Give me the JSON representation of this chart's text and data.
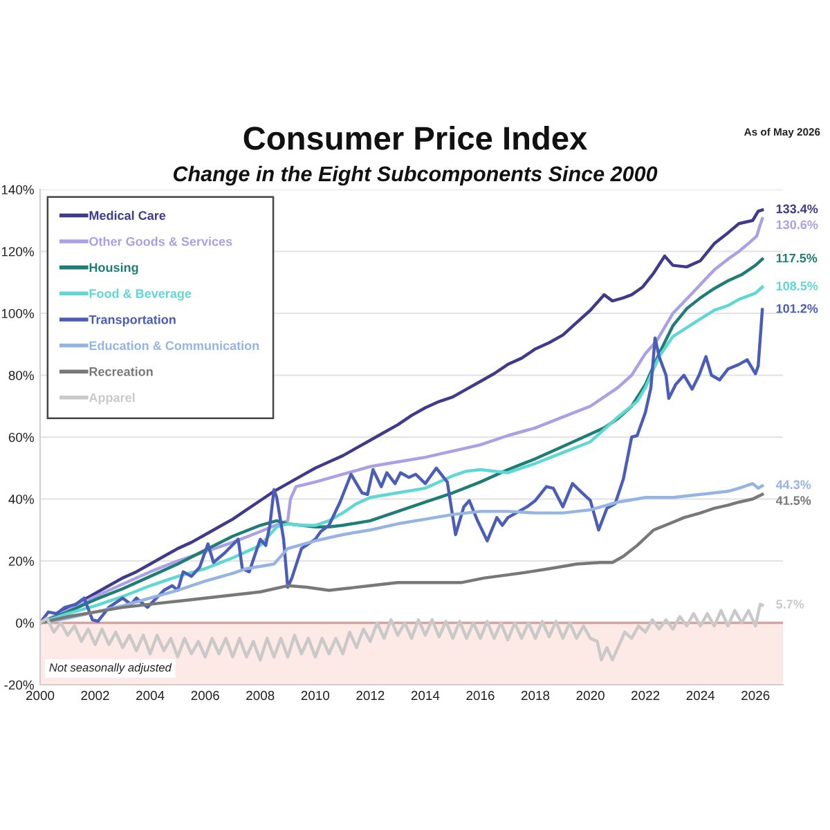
{
  "chart_data": {
    "type": "line",
    "title": "Consumer Price Index",
    "subtitle": "Change in the Eight Subcomponents Since 2000",
    "annotations": [
      "As of May 2026",
      "Not seasonally adjusted"
    ],
    "xlim": [
      2000,
      2027
    ],
    "xticks": [
      2000,
      2002,
      2004,
      2006,
      2008,
      2010,
      2012,
      2014,
      2016,
      2018,
      2020,
      2022,
      2024,
      2026
    ],
    "ylim": [
      -20,
      140
    ],
    "yticks": [
      {
        "value": -20,
        "label": "-20%"
      },
      {
        "value": 0,
        "label": "0%"
      },
      {
        "value": 20,
        "label": "20%"
      },
      {
        "value": 40,
        "label": "40%"
      },
      {
        "value": 60,
        "label": "60%"
      },
      {
        "value": 80,
        "label": "80%"
      },
      {
        "value": 100,
        "label": "100%"
      },
      {
        "value": 120,
        "label": "120%"
      },
      {
        "value": 140,
        "label": "140%"
      }
    ],
    "grid": "y",
    "legend": "top left",
    "line_style": "solid",
    "bands": [
      {
        "axis": "y",
        "from": -20,
        "to": 0,
        "color": "#fde9e6"
      }
    ],
    "ref_lines": [
      {
        "axis": "y",
        "value": 0,
        "color": "#d4a59f"
      }
    ],
    "series": [
      {
        "name": "Medical Care",
        "color": "#3f3a8c",
        "x": [
          2000,
          2000.5,
          2001,
          2001.5,
          2002,
          2002.5,
          2003,
          2003.5,
          2004,
          2004.5,
          2005,
          2005.5,
          2006,
          2006.5,
          2007,
          2007.5,
          2008,
          2008.5,
          2009,
          2009.5,
          2010,
          2010.5,
          2011,
          2011.5,
          2012,
          2012.5,
          2013,
          2013.5,
          2014,
          2014.5,
          2015,
          2015.5,
          2016,
          2016.5,
          2017,
          2017.5,
          2018,
          2018.5,
          2019,
          2019.5,
          2020,
          2020.5,
          2020.8,
          2021.2,
          2021.5,
          2021.9,
          2022.3,
          2022.7,
          2023,
          2023.5,
          2024,
          2024.5,
          2025,
          2025.4,
          2025.9,
          2026.1,
          2026.25
        ],
        "values": [
          0,
          2,
          4.5,
          7,
          9.5,
          12,
          14.5,
          16.5,
          19,
          21.5,
          24,
          26,
          28.5,
          31,
          33.5,
          36.5,
          39.5,
          42.5,
          45,
          47.5,
          50,
          52,
          54,
          56.5,
          59,
          61.5,
          64,
          67,
          69.5,
          71.5,
          73,
          75.5,
          78,
          80.5,
          83.5,
          85.5,
          88.5,
          90.5,
          93,
          97,
          101,
          106,
          104,
          105,
          106,
          108.5,
          113,
          118.5,
          115.5,
          115,
          117,
          122.5,
          126,
          129,
          130,
          133,
          133.4
        ],
        "value_labels": [
          null,
          null,
          null,
          null,
          null,
          null,
          null,
          null,
          null,
          null,
          null,
          null,
          null,
          null,
          null,
          null,
          null,
          null,
          null,
          null,
          null,
          null,
          null,
          null,
          null,
          null,
          null,
          null,
          null,
          null,
          null,
          null,
          null,
          null,
          null,
          null,
          null,
          null,
          null,
          null,
          null,
          null,
          null,
          null,
          null,
          null,
          null,
          null,
          null,
          null,
          null,
          null,
          null,
          null,
          null,
          null,
          "133.4%"
        ]
      },
      {
        "name": "Other Goods & Services",
        "color": "#aaa0e6",
        "x": [
          2000,
          2001,
          2002,
          2003,
          2004,
          2005,
          2006,
          2007,
          2008,
          2008.7,
          2009,
          2009.1,
          2009.3,
          2010,
          2011,
          2012,
          2013,
          2014,
          2015,
          2016,
          2017,
          2018,
          2019,
          2020,
          2020.5,
          2021,
          2021.5,
          2022,
          2022.4,
          2023,
          2023.7,
          2024.5,
          2025,
          2025.4,
          2025.8,
          2026.05,
          2026.15,
          2026.25
        ],
        "values": [
          0,
          4,
          8.5,
          12.5,
          16.5,
          20,
          23,
          26,
          29.5,
          32,
          33,
          40,
          44,
          45.5,
          48,
          50.5,
          52,
          53.5,
          55.5,
          57.5,
          60.5,
          63,
          66.5,
          70,
          73,
          76,
          80,
          87,
          91,
          100,
          106.5,
          114,
          117.5,
          120,
          123,
          125,
          128,
          130.6
        ],
        "value_labels": [
          null,
          null,
          null,
          null,
          null,
          null,
          null,
          null,
          null,
          null,
          null,
          null,
          null,
          null,
          null,
          null,
          null,
          null,
          null,
          null,
          null,
          null,
          null,
          null,
          null,
          null,
          null,
          null,
          null,
          null,
          null,
          null,
          null,
          null,
          null,
          null,
          null,
          "130.6%"
        ]
      },
      {
        "name": "Housing",
        "color": "#1e7d74",
        "x": [
          2000,
          2001,
          2002,
          2003,
          2004,
          2005,
          2006,
          2007,
          2008,
          2008.6,
          2009,
          2009.5,
          2010,
          2010.5,
          2011,
          2012,
          2013,
          2014,
          2015,
          2016,
          2017,
          2018,
          2019,
          2020,
          2020.5,
          2021,
          2021.5,
          2022,
          2022.5,
          2023,
          2023.5,
          2024,
          2024.5,
          2025,
          2025.5,
          2026,
          2026.25
        ],
        "values": [
          0,
          3.5,
          7.5,
          11,
          15,
          19,
          23.5,
          28,
          31.5,
          33,
          32,
          31.5,
          31,
          31,
          31.5,
          33,
          36,
          39,
          42,
          45.5,
          49.5,
          53,
          57,
          61,
          63,
          66,
          70,
          77,
          87,
          96,
          101.5,
          105,
          108,
          110.5,
          112.5,
          115.5,
          117.5
        ],
        "value_labels": [
          null,
          null,
          null,
          null,
          null,
          null,
          null,
          null,
          null,
          null,
          null,
          null,
          null,
          null,
          null,
          null,
          null,
          null,
          null,
          null,
          null,
          null,
          null,
          null,
          null,
          null,
          null,
          null,
          null,
          null,
          null,
          null,
          null,
          null,
          null,
          null,
          "117.5%"
        ]
      },
      {
        "name": "Food & Beverage",
        "color": "#5fd8d4",
        "x": [
          2000,
          2001,
          2002,
          2003,
          2004,
          2005,
          2006,
          2007,
          2008,
          2008.6,
          2009,
          2009.5,
          2010,
          2010.5,
          2011,
          2011.5,
          2012,
          2013,
          2014,
          2015,
          2015.5,
          2016,
          2017,
          2018,
          2019,
          2020,
          2020.5,
          2021,
          2021.7,
          2022,
          2022.5,
          2023,
          2023.7,
          2024.5,
          2025,
          2025.4,
          2026,
          2026.25
        ],
        "values": [
          0,
          3,
          5.5,
          8.5,
          12,
          15,
          17.5,
          21,
          25,
          31,
          32,
          31.5,
          31.5,
          33,
          35.5,
          38.5,
          40.5,
          42,
          43.5,
          47.5,
          49,
          49.5,
          48.5,
          51.5,
          55,
          58.5,
          62.5,
          66.5,
          71.5,
          76,
          86,
          92.5,
          96.5,
          101,
          102.5,
          104.5,
          106.5,
          108.5
        ],
        "value_labels": [
          null,
          null,
          null,
          null,
          null,
          null,
          null,
          null,
          null,
          null,
          null,
          null,
          null,
          null,
          null,
          null,
          null,
          null,
          null,
          null,
          null,
          null,
          null,
          null,
          null,
          null,
          null,
          null,
          null,
          null,
          null,
          null,
          null,
          null,
          null,
          null,
          null,
          "108.5%"
        ]
      },
      {
        "name": "Transportation",
        "color": "#4a5db8",
        "x": [
          2000,
          2000.3,
          2000.6,
          2000.9,
          2001.3,
          2001.6,
          2001.9,
          2002.1,
          2002.5,
          2003,
          2003.3,
          2003.5,
          2003.9,
          2004.5,
          2004.8,
          2005,
          2005.2,
          2005.5,
          2005.8,
          2006.1,
          2006.3,
          2006.7,
          2007.2,
          2007.35,
          2007.6,
          2008,
          2008.2,
          2008.35,
          2008.5,
          2008.6,
          2008.85,
          2009,
          2009.15,
          2009.5,
          2010,
          2010.2,
          2010.5,
          2010.9,
          2011.3,
          2011.7,
          2011.9,
          2012.1,
          2012.4,
          2012.6,
          2012.9,
          2013.1,
          2013.4,
          2013.65,
          2014,
          2014.4,
          2014.8,
          2015.1,
          2015.4,
          2015.6,
          2015.9,
          2016.25,
          2016.6,
          2016.8,
          2017,
          2017.4,
          2017.7,
          2018,
          2018.4,
          2018.65,
          2019,
          2019.35,
          2019.7,
          2020,
          2020.3,
          2020.6,
          2020.9,
          2021.2,
          2021.5,
          2021.7,
          2022,
          2022.2,
          2022.35,
          2022.5,
          2022.75,
          2022.85,
          2023.1,
          2023.4,
          2023.7,
          2023.95,
          2024.2,
          2024.4,
          2024.7,
          2025,
          2025.4,
          2025.7,
          2026,
          2026.1,
          2026.25
        ],
        "values": [
          0,
          3.5,
          3,
          5,
          6,
          8,
          1,
          0.5,
          5,
          8,
          6,
          8,
          5,
          10.5,
          12,
          10.5,
          16.5,
          15,
          18,
          25.5,
          19.5,
          22.5,
          27,
          17.5,
          16.5,
          27,
          25,
          31.5,
          43,
          40.5,
          27,
          11.5,
          14.5,
          24,
          27,
          29.5,
          31.5,
          39,
          48,
          42,
          41.5,
          49.5,
          44,
          48.5,
          45,
          48.5,
          47,
          48,
          45,
          50,
          45.5,
          28.5,
          37.5,
          39.5,
          33,
          26.5,
          34,
          31.5,
          34,
          36,
          37.5,
          39.5,
          44,
          43.5,
          37.5,
          45,
          42,
          39.5,
          30,
          37,
          38.5,
          46.5,
          60,
          60.5,
          68,
          76,
          92,
          86,
          80,
          72.5,
          77,
          80,
          75.5,
          80,
          86,
          80,
          78.5,
          82,
          83.5,
          85,
          80.5,
          83,
          101.2
        ],
        "value_labels": [
          null,
          null,
          null,
          null,
          null,
          null,
          null,
          null,
          null,
          null,
          null,
          null,
          null,
          null,
          null,
          null,
          null,
          null,
          null,
          null,
          null,
          null,
          null,
          null,
          null,
          null,
          null,
          null,
          null,
          null,
          null,
          null,
          null,
          null,
          null,
          null,
          null,
          null,
          null,
          null,
          null,
          null,
          null,
          null,
          null,
          null,
          null,
          null,
          null,
          null,
          null,
          null,
          null,
          null,
          null,
          null,
          null,
          null,
          null,
          null,
          null,
          null,
          null,
          null,
          null,
          null,
          null,
          null,
          null,
          null,
          null,
          null,
          null,
          null,
          null,
          null,
          null,
          null,
          null,
          null,
          null,
          null,
          null,
          null,
          null,
          null,
          null,
          null,
          null,
          null,
          null,
          null,
          "101.2%"
        ]
      },
      {
        "name": "Education & Communication",
        "color": "#95b3e3",
        "x": [
          2000,
          2001,
          2002,
          2003,
          2004,
          2005,
          2006,
          2007,
          2007.5,
          2008.5,
          2009,
          2010,
          2011,
          2012,
          2013,
          2014,
          2015,
          2016,
          2017,
          2018,
          2019,
          2020,
          2021,
          2022,
          2023,
          2024,
          2025,
          2025.4,
          2025.9,
          2026.1,
          2026.25
        ],
        "values": [
          0,
          1.5,
          3.5,
          5.5,
          8,
          10.5,
          13.5,
          16,
          17.5,
          19,
          24,
          26.5,
          28.5,
          30,
          32,
          33.5,
          35,
          36,
          36,
          35.5,
          35.5,
          36.5,
          39,
          40.5,
          40.5,
          41.5,
          42.5,
          43.5,
          45,
          43.5,
          44.3
        ],
        "value_labels": [
          null,
          null,
          null,
          null,
          null,
          null,
          null,
          null,
          null,
          null,
          null,
          null,
          null,
          null,
          null,
          null,
          null,
          null,
          null,
          null,
          null,
          null,
          null,
          null,
          null,
          null,
          null,
          null,
          null,
          null,
          "44.3%"
        ]
      },
      {
        "name": "Recreation",
        "color": "#787878",
        "x": [
          2000,
          2001,
          2002,
          2003,
          2004,
          2005,
          2006,
          2007,
          2008,
          2009,
          2009.7,
          2010.5,
          2011,
          2012,
          2013,
          2014,
          2015.3,
          2016.15,
          2017,
          2017.8,
          2018.5,
          2019.5,
          2020.35,
          2020.8,
          2021.2,
          2021.7,
          2022.3,
          2023,
          2023.4,
          2024,
          2024.5,
          2025,
          2025.4,
          2025.9,
          2026.25
        ],
        "values": [
          0,
          2,
          3.5,
          5,
          6,
          7,
          8,
          9,
          10,
          12,
          11.5,
          10.5,
          11,
          12,
          13,
          13,
          13,
          14.5,
          15.5,
          16.5,
          17.5,
          19,
          19.5,
          19.5,
          21.5,
          25,
          30,
          32.5,
          34,
          35.5,
          37,
          38,
          39,
          40,
          41.5
        ],
        "value_labels": [
          null,
          null,
          null,
          null,
          null,
          null,
          null,
          null,
          null,
          null,
          null,
          null,
          null,
          null,
          null,
          null,
          null,
          null,
          null,
          null,
          null,
          null,
          null,
          null,
          null,
          null,
          null,
          null,
          null,
          null,
          null,
          null,
          null,
          null,
          "41.5%"
        ]
      },
      {
        "name": "Apparel",
        "color": "#c9c9c9",
        "x": [
          2000,
          2000.25,
          2000.5,
          2000.75,
          2001,
          2001.25,
          2001.5,
          2001.75,
          2002,
          2002.25,
          2002.5,
          2002.75,
          2003,
          2003.25,
          2003.5,
          2003.75,
          2004,
          2004.25,
          2004.5,
          2004.75,
          2005,
          2005.25,
          2005.5,
          2005.75,
          2006,
          2006.25,
          2006.5,
          2006.75,
          2007,
          2007.25,
          2007.5,
          2007.75,
          2008,
          2008.25,
          2008.5,
          2008.75,
          2009,
          2009.25,
          2009.5,
          2009.75,
          2010,
          2010.25,
          2010.5,
          2010.75,
          2011,
          2011.25,
          2011.5,
          2011.75,
          2012,
          2012.25,
          2012.5,
          2012.75,
          2013,
          2013.25,
          2013.5,
          2013.75,
          2014,
          2014.25,
          2014.5,
          2014.75,
          2015,
          2015.25,
          2015.5,
          2015.75,
          2016,
          2016.25,
          2016.5,
          2016.75,
          2017,
          2017.25,
          2017.5,
          2017.75,
          2018,
          2018.25,
          2018.5,
          2018.75,
          2019,
          2019.25,
          2019.5,
          2019.75,
          2020,
          2020.25,
          2020.4,
          2020.6,
          2020.8,
          2021,
          2021.25,
          2021.5,
          2021.75,
          2022,
          2022.25,
          2022.5,
          2022.75,
          2023,
          2023.25,
          2023.5,
          2023.75,
          2024,
          2024.25,
          2024.5,
          2024.75,
          2025,
          2025.25,
          2025.5,
          2025.75,
          2026,
          2026.17,
          2026.25
        ],
        "values": [
          0,
          1.5,
          -3,
          0,
          -4,
          -1,
          -6,
          -2,
          -7,
          -2,
          -7,
          -3,
          -8,
          -4,
          -9,
          -4,
          -10,
          -4,
          -9,
          -5,
          -11,
          -5,
          -10,
          -6,
          -11,
          -5,
          -10,
          -5,
          -11,
          -5,
          -11,
          -6,
          -12,
          -5,
          -11,
          -5,
          -11,
          -4,
          -10,
          -5,
          -11,
          -5,
          -10,
          -5,
          -10,
          -3,
          -8,
          -2,
          -6,
          0,
          -5,
          1,
          -4,
          0,
          -5,
          1,
          -4,
          1,
          -4.5,
          0.5,
          -5,
          0.5,
          -5,
          0,
          -5,
          0.5,
          -5,
          0,
          -5.5,
          0,
          -5,
          0,
          -5,
          0.5,
          -4.5,
          0.5,
          -5,
          0,
          -5,
          -1,
          -5,
          -6,
          -12,
          -8,
          -12,
          -8,
          -3,
          -5,
          -1,
          -3,
          1,
          -2,
          1,
          -2,
          2,
          -1,
          3,
          -1,
          3,
          -1,
          4,
          -1,
          4,
          0,
          4,
          -1,
          6,
          5.7
        ],
        "value_labels": [
          null,
          null,
          null,
          null,
          null,
          null,
          null,
          null,
          null,
          null,
          null,
          null,
          null,
          null,
          null,
          null,
          null,
          null,
          null,
          null,
          null,
          null,
          null,
          null,
          null,
          null,
          null,
          null,
          null,
          null,
          null,
          null,
          null,
          null,
          null,
          null,
          null,
          null,
          null,
          null,
          null,
          null,
          null,
          null,
          null,
          null,
          null,
          null,
          null,
          null,
          null,
          null,
          null,
          null,
          null,
          null,
          null,
          null,
          null,
          null,
          null,
          null,
          null,
          null,
          null,
          null,
          null,
          null,
          null,
          null,
          null,
          null,
          null,
          null,
          null,
          null,
          null,
          null,
          null,
          null,
          null,
          null,
          null,
          null,
          null,
          null,
          null,
          null,
          null,
          null,
          null,
          null,
          null,
          null,
          null,
          null,
          null,
          null,
          null,
          null,
          null,
          null,
          null,
          null,
          null,
          null,
          null,
          "5.7%"
        ]
      }
    ]
  }
}
